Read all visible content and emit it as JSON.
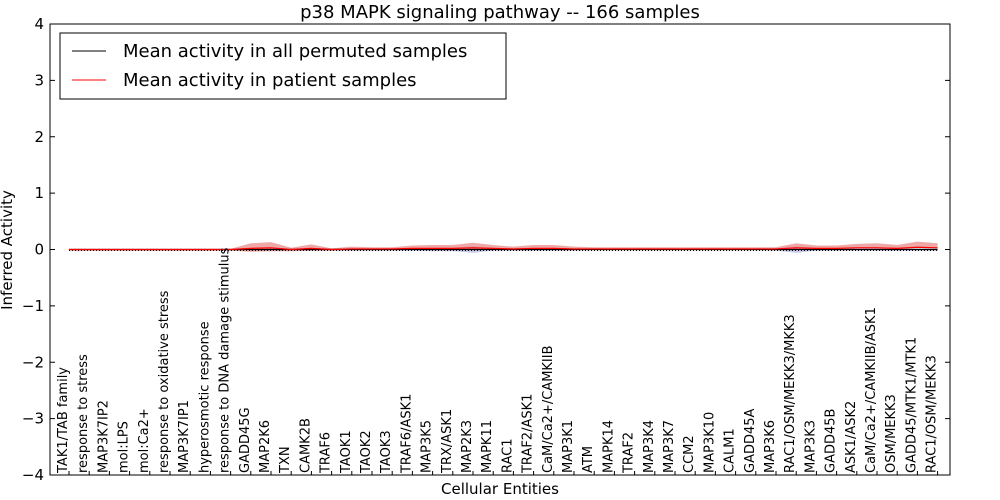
{
  "chart_data": {
    "type": "line",
    "title": "p38 MAPK signaling pathway -- 166 samples",
    "xlabel": "Cellular Entities",
    "ylabel": "Inferred Activity",
    "ylim": [
      -4,
      4
    ],
    "yticks": [
      -4,
      -3,
      -2,
      -1,
      0,
      1,
      2,
      3,
      4
    ],
    "ytick_labels": [
      "−4",
      "−3",
      "−2",
      "−1",
      "0",
      "1",
      "2",
      "3",
      "4"
    ],
    "legend_position": "top-left",
    "categories": [
      "TAK1/TAB family",
      "response to stress",
      "MAP3K7IP2",
      "mol:LPS",
      "mol:Ca2+",
      "response to oxidative stress",
      "MAP3K7IP1",
      "hyperosmotic response",
      "response to DNA damage stimulus",
      "GADD45G",
      "MAP2K6",
      "TXN",
      "CAMK2B",
      "TRAF6",
      "TAOK1",
      "TAOK2",
      "TAOK3",
      "TRAF6/ASK1",
      "MAP3K5",
      "TRX/ASK1",
      "MAP2K3",
      "MAPK11",
      "RAC1",
      "TRAF2/ASK1",
      "CaM/Ca2+/CAMKIIB",
      "MAP3K1",
      "ATM",
      "MAPK14",
      "TRAF2",
      "MAP3K4",
      "MAP3K7",
      "CCM2",
      "MAP3K10",
      "CALM1",
      "GADD45A",
      "MAP3K6",
      "RAC1/OSM/MEKK3/MKK3",
      "MAP3K3",
      "GADD45B",
      "ASK1/ASK2",
      "CaM/Ca2+/CAMKIIB/ASK1",
      "OSM/MEKK3",
      "GADD45/MTK1/MTK1",
      "RAC1/OSM/MEKK3"
    ],
    "series": [
      {
        "name": "Mean activity in all permuted samples",
        "color": "#000000",
        "values": [
          0,
          0,
          0,
          0,
          0,
          0,
          0,
          0,
          0,
          0,
          0,
          0,
          0,
          0,
          0,
          0,
          0,
          0,
          0,
          0,
          0,
          0,
          0,
          0,
          0,
          0,
          0,
          0,
          0,
          0,
          0,
          0,
          0,
          0,
          0,
          0,
          0,
          0,
          0,
          0,
          0,
          0,
          0,
          0
        ],
        "band": {
          "color": "#b8bce0",
          "lower": [
            -0.01,
            -0.01,
            -0.01,
            -0.01,
            -0.01,
            -0.01,
            -0.01,
            -0.01,
            -0.01,
            -0.02,
            -0.02,
            -0.02,
            -0.02,
            -0.02,
            -0.02,
            -0.02,
            -0.02,
            -0.02,
            -0.03,
            -0.03,
            -0.06,
            -0.02,
            -0.02,
            -0.02,
            -0.02,
            -0.02,
            -0.01,
            -0.01,
            -0.01,
            -0.01,
            -0.01,
            -0.01,
            -0.01,
            -0.01,
            -0.01,
            -0.02,
            -0.06,
            -0.02,
            -0.02,
            -0.02,
            -0.02,
            -0.02,
            -0.02,
            -0.02
          ],
          "upper": [
            0.01,
            0.01,
            0.01,
            0.01,
            0.01,
            0.01,
            0.01,
            0.01,
            0.01,
            0.02,
            0.02,
            0.02,
            0.02,
            0.02,
            0.02,
            0.02,
            0.02,
            0.02,
            0.03,
            0.03,
            0.06,
            0.02,
            0.02,
            0.02,
            0.02,
            0.02,
            0.01,
            0.01,
            0.01,
            0.01,
            0.01,
            0.01,
            0.01,
            0.01,
            0.01,
            0.02,
            0.06,
            0.02,
            0.02,
            0.02,
            0.02,
            0.02,
            0.02,
            0.02
          ]
        }
      },
      {
        "name": "Mean activity in patient samples",
        "color": "#ff0000",
        "values": [
          0,
          0,
          0,
          0,
          0,
          0,
          0,
          0,
          0,
          0.02,
          0.03,
          0,
          0.02,
          0,
          0.01,
          0.01,
          0.01,
          0.02,
          0.02,
          0.02,
          0.03,
          0.02,
          0.01,
          0.02,
          0.02,
          0.01,
          0.01,
          0.01,
          0.01,
          0.01,
          0.01,
          0.01,
          0.01,
          0.01,
          0.01,
          0.01,
          0.03,
          0.02,
          0.02,
          0.03,
          0.03,
          0.02,
          0.04,
          0.03
        ],
        "band": {
          "color": "#e88b8b",
          "lower": [
            -0.02,
            -0.02,
            -0.02,
            -0.02,
            -0.02,
            -0.02,
            -0.02,
            -0.02,
            -0.02,
            -0.06,
            -0.06,
            -0.03,
            -0.04,
            -0.02,
            -0.02,
            -0.02,
            -0.02,
            -0.02,
            -0.03,
            -0.03,
            -0.04,
            -0.02,
            -0.02,
            -0.02,
            -0.02,
            -0.02,
            -0.01,
            -0.01,
            -0.01,
            -0.01,
            -0.01,
            -0.01,
            -0.01,
            -0.01,
            -0.01,
            -0.01,
            -0.02,
            -0.01,
            -0.01,
            0,
            0,
            -0.01,
            0,
            0
          ],
          "upper": [
            0.01,
            0.01,
            0.01,
            0.01,
            0.01,
            0.01,
            0.01,
            0.01,
            0.01,
            0.09,
            0.1,
            0.03,
            0.07,
            0.02,
            0.04,
            0.03,
            0.03,
            0.05,
            0.06,
            0.06,
            0.09,
            0.06,
            0.04,
            0.06,
            0.06,
            0.04,
            0.03,
            0.03,
            0.03,
            0.03,
            0.03,
            0.03,
            0.03,
            0.03,
            0.03,
            0.03,
            0.08,
            0.05,
            0.05,
            0.07,
            0.08,
            0.06,
            0.1,
            0.08
          ]
        }
      }
    ],
    "reference_line": {
      "y": 0,
      "style": "dotted",
      "color": "#000000"
    }
  }
}
